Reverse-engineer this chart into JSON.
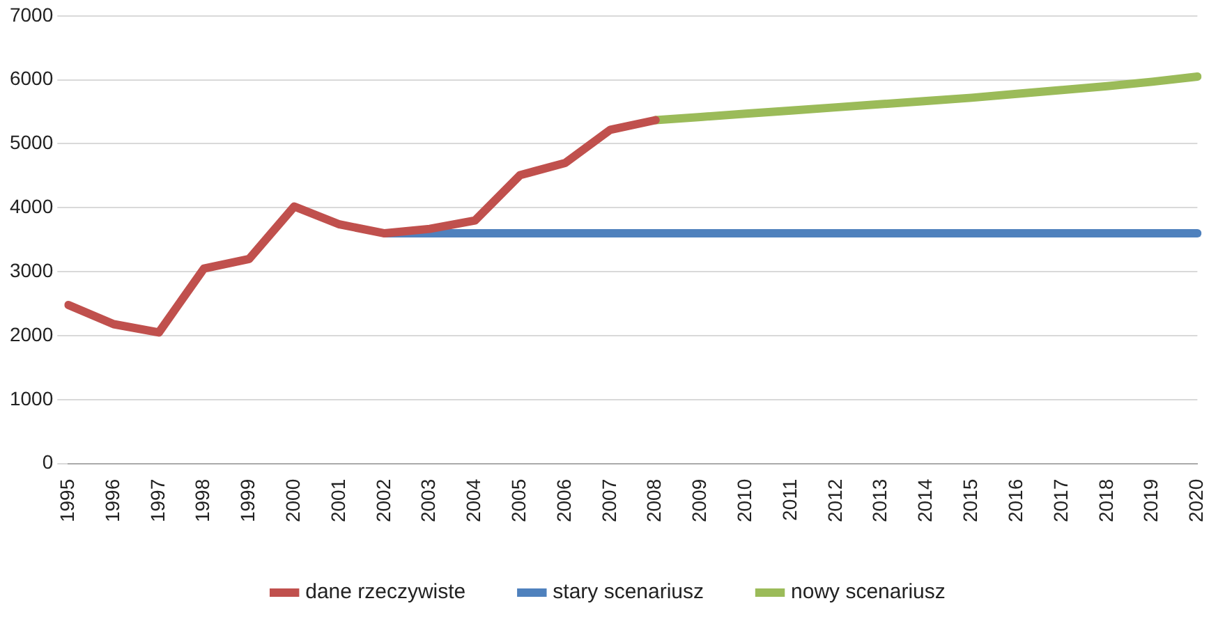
{
  "chart_data": {
    "type": "line",
    "categories": [
      "1995",
      "1996",
      "1997",
      "1998",
      "1999",
      "2000",
      "2001",
      "2002",
      "2003",
      "2004",
      "2005",
      "2006",
      "2007",
      "2008",
      "2009",
      "2010",
      "2011",
      "2012",
      "2013",
      "2014",
      "2015",
      "2016",
      "2017",
      "2018",
      "2019",
      "2020"
    ],
    "series": [
      {
        "name": "dane rzeczywiste",
        "color": "#c0504d",
        "values": [
          2480,
          2180,
          2050,
          3050,
          3200,
          4020,
          3740,
          3600,
          3670,
          3800,
          4510,
          4700,
          5220,
          5370,
          null,
          null,
          null,
          null,
          null,
          null,
          null,
          null,
          null,
          null,
          null,
          null
        ]
      },
      {
        "name": "stary scenariusz",
        "color": "#4f81bd",
        "values": [
          null,
          null,
          null,
          null,
          null,
          null,
          null,
          3600,
          3600,
          3600,
          3600,
          3600,
          3600,
          3600,
          3600,
          3600,
          3600,
          3600,
          3600,
          3600,
          3600,
          3600,
          3600,
          3600,
          3600,
          3600
        ]
      },
      {
        "name": "nowy scenariusz",
        "color": "#9bbb59",
        "values": [
          null,
          null,
          null,
          null,
          null,
          null,
          null,
          null,
          null,
          null,
          null,
          null,
          null,
          5370,
          5420,
          5470,
          5520,
          5570,
          5620,
          5670,
          5720,
          5780,
          5840,
          5900,
          5970,
          6050
        ]
      }
    ],
    "ylim": [
      0,
      7000
    ],
    "yticks": [
      0,
      1000,
      2000,
      3000,
      4000,
      5000,
      6000,
      7000
    ],
    "grid": "y",
    "legend": "bottom",
    "marker": "none",
    "line_style": "solid"
  }
}
